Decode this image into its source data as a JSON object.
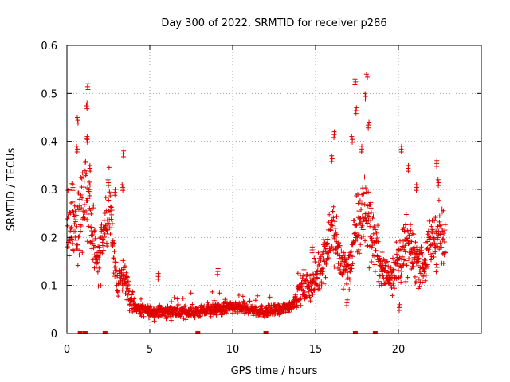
{
  "chart_data": {
    "type": "scatter",
    "title": "Day 300 of 2022, SRMTID for receiver p286",
    "xlabel": "GPS time / hours",
    "ylabel": "SRMTID / TECUs",
    "xlim": [
      0,
      25
    ],
    "ylim": [
      0,
      0.6
    ],
    "xticks": [
      0,
      5,
      10,
      15,
      20
    ],
    "yticks": [
      0,
      0.1,
      0.2,
      0.3,
      0.4,
      0.5,
      0.6
    ],
    "xtick_labels": [
      "0",
      "5",
      "10",
      "15",
      "20"
    ],
    "ytick_labels": [
      "0",
      "0.1",
      "0.2",
      "0.3",
      "0.4",
      "0.5",
      "0.6"
    ],
    "grid": true,
    "marker": "+",
    "color": "#e00000",
    "trend": [
      {
        "x": 0.0,
        "y": 0.21
      },
      {
        "x": 0.3,
        "y": 0.24
      },
      {
        "x": 0.6,
        "y": 0.2
      },
      {
        "x": 0.9,
        "y": 0.28
      },
      {
        "x": 1.2,
        "y": 0.3
      },
      {
        "x": 1.5,
        "y": 0.22
      },
      {
        "x": 1.8,
        "y": 0.14
      },
      {
        "x": 2.2,
        "y": 0.2
      },
      {
        "x": 2.6,
        "y": 0.26
      },
      {
        "x": 3.0,
        "y": 0.1
      },
      {
        "x": 3.4,
        "y": 0.13
      },
      {
        "x": 3.8,
        "y": 0.07
      },
      {
        "x": 4.3,
        "y": 0.05
      },
      {
        "x": 5.0,
        "y": 0.045
      },
      {
        "x": 6.0,
        "y": 0.045
      },
      {
        "x": 7.0,
        "y": 0.045
      },
      {
        "x": 8.0,
        "y": 0.045
      },
      {
        "x": 9.0,
        "y": 0.05
      },
      {
        "x": 10.0,
        "y": 0.055
      },
      {
        "x": 11.0,
        "y": 0.05
      },
      {
        "x": 12.0,
        "y": 0.045
      },
      {
        "x": 13.0,
        "y": 0.05
      },
      {
        "x": 13.6,
        "y": 0.06
      },
      {
        "x": 14.0,
        "y": 0.09
      },
      {
        "x": 14.6,
        "y": 0.1
      },
      {
        "x": 15.0,
        "y": 0.11
      },
      {
        "x": 15.5,
        "y": 0.16
      },
      {
        "x": 16.0,
        "y": 0.22
      },
      {
        "x": 16.5,
        "y": 0.15
      },
      {
        "x": 17.0,
        "y": 0.13
      },
      {
        "x": 17.5,
        "y": 0.22
      },
      {
        "x": 18.0,
        "y": 0.26
      },
      {
        "x": 18.5,
        "y": 0.2
      },
      {
        "x": 19.0,
        "y": 0.13
      },
      {
        "x": 19.5,
        "y": 0.12
      },
      {
        "x": 20.0,
        "y": 0.15
      },
      {
        "x": 20.5,
        "y": 0.18
      },
      {
        "x": 21.0,
        "y": 0.16
      },
      {
        "x": 21.5,
        "y": 0.14
      },
      {
        "x": 22.0,
        "y": 0.19
      },
      {
        "x": 22.5,
        "y": 0.21
      },
      {
        "x": 22.8,
        "y": 0.18
      }
    ],
    "spikes": [
      {
        "x": 0.35,
        "y": 0.31
      },
      {
        "x": 0.65,
        "y": 0.45
      },
      {
        "x": 0.6,
        "y": 0.39
      },
      {
        "x": 1.25,
        "y": 0.52
      },
      {
        "x": 1.2,
        "y": 0.48
      },
      {
        "x": 1.25,
        "y": 0.41
      },
      {
        "x": 1.4,
        "y": 0.35
      },
      {
        "x": 2.5,
        "y": 0.32
      },
      {
        "x": 2.9,
        "y": 0.3
      },
      {
        "x": 3.4,
        "y": 0.38
      },
      {
        "x": 3.35,
        "y": 0.31
      },
      {
        "x": 5.5,
        "y": 0.125
      },
      {
        "x": 9.1,
        "y": 0.135
      },
      {
        "x": 14.8,
        "y": 0.18
      },
      {
        "x": 16.1,
        "y": 0.42
      },
      {
        "x": 16.0,
        "y": 0.37
      },
      {
        "x": 17.4,
        "y": 0.53
      },
      {
        "x": 17.45,
        "y": 0.47
      },
      {
        "x": 17.2,
        "y": 0.41
      },
      {
        "x": 18.1,
        "y": 0.54
      },
      {
        "x": 18.0,
        "y": 0.5
      },
      {
        "x": 18.2,
        "y": 0.44
      },
      {
        "x": 17.8,
        "y": 0.39
      },
      {
        "x": 20.2,
        "y": 0.39
      },
      {
        "x": 20.6,
        "y": 0.35
      },
      {
        "x": 21.1,
        "y": 0.31
      },
      {
        "x": 22.3,
        "y": 0.36
      },
      {
        "x": 22.4,
        "y": 0.32
      },
      {
        "x": 16.9,
        "y": 0.07
      },
      {
        "x": 20.05,
        "y": 0.06
      }
    ],
    "baseline_markers": [
      0.8,
      1.1,
      2.3,
      7.9,
      12.0,
      17.4,
      18.6
    ]
  }
}
